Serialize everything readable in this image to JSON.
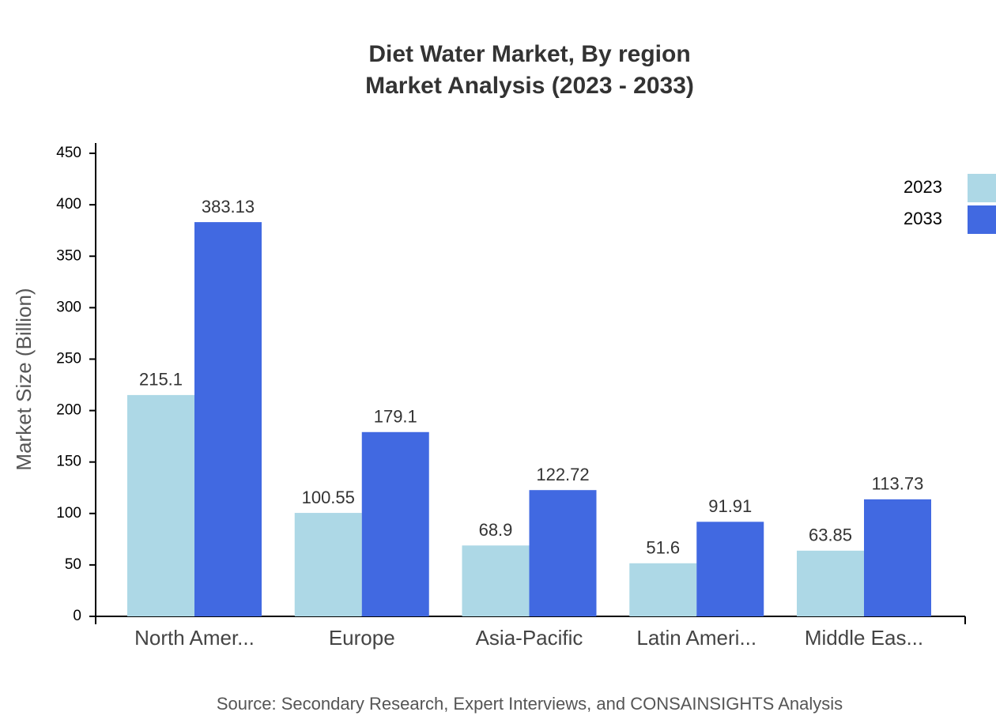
{
  "chart_data": {
    "type": "bar",
    "title": "Diet Water Market, By region",
    "subtitle": "Market Analysis (2023 - 2033)",
    "y_label": "Market Size (Billion)",
    "source": "Source: Secondary Research, Expert Interviews, and CONSAINSIGHTS Analysis",
    "categories": [
      "North Amer...",
      "Europe",
      "Asia-Pacific",
      "Latin Ameri...",
      "Middle Eas..."
    ],
    "series": [
      {
        "name": "2023",
        "color": "#add8e6",
        "values": [
          215.1,
          100.55,
          68.9,
          51.6,
          63.85
        ]
      },
      {
        "name": "2033",
        "color": "#4169e1",
        "values": [
          383.13,
          179.1,
          122.72,
          91.91,
          113.73
        ]
      }
    ],
    "ylim": [
      0,
      460
    ],
    "yticks": [
      0,
      50,
      100,
      150,
      200,
      250,
      300,
      350,
      400,
      450
    ],
    "legend": "top-right"
  }
}
